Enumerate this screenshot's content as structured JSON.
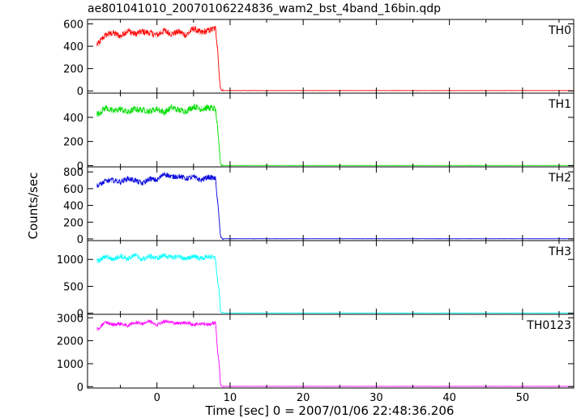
{
  "chart_data": {
    "type": "line",
    "title": "ae801041010_20070106224836_wam2_bst_4band_16bin.qdp",
    "xlabel": "Time [sec] 0 = 2007/01/06 22:48:36.206",
    "ylabel": "Counts/sec",
    "xlim": [
      -9.5,
      57
    ],
    "x_ticks": [
      0,
      10,
      20,
      30,
      40,
      50
    ],
    "grid": false,
    "drop_time": 8.6,
    "data_start": -8.2,
    "panels": [
      {
        "name": "TH0",
        "color": "#ff0000",
        "ylim": [
          -20,
          640
        ],
        "y_ticks": [
          0,
          200,
          400,
          600
        ],
        "level": 520,
        "noise": 55,
        "background": 3,
        "trace": [
          [
            -8,
            420
          ],
          [
            -7.5,
            470
          ],
          [
            -7,
            500
          ],
          [
            -6,
            520
          ],
          [
            -5,
            490
          ],
          [
            -4,
            540
          ],
          [
            -3,
            510
          ],
          [
            -2,
            530
          ],
          [
            -1,
            520
          ],
          [
            0,
            500
          ],
          [
            1,
            540
          ],
          [
            2,
            510
          ],
          [
            3,
            530
          ],
          [
            4,
            500
          ],
          [
            5,
            560
          ],
          [
            6,
            520
          ],
          [
            7,
            540
          ],
          [
            8,
            560
          ],
          [
            8.3,
            380
          ],
          [
            8.5,
            150
          ],
          [
            8.7,
            15
          ],
          [
            9,
            5
          ]
        ]
      },
      {
        "name": "TH1",
        "color": "#00dd00",
        "ylim": [
          -10,
          600
        ],
        "y_ticks": [
          0,
          200,
          400
        ],
        "level": 460,
        "noise": 50,
        "background": 2,
        "trace": [
          [
            -8,
            430
          ],
          [
            -7,
            480
          ],
          [
            -6,
            450
          ],
          [
            -5,
            470
          ],
          [
            -4,
            440
          ],
          [
            -3,
            470
          ],
          [
            -2,
            460
          ],
          [
            -1,
            450
          ],
          [
            0,
            470
          ],
          [
            1,
            440
          ],
          [
            2,
            480
          ],
          [
            3,
            460
          ],
          [
            4,
            450
          ],
          [
            5,
            490
          ],
          [
            6,
            470
          ],
          [
            7,
            480
          ],
          [
            8,
            470
          ],
          [
            8.3,
            300
          ],
          [
            8.5,
            160
          ],
          [
            8.7,
            10
          ],
          [
            9,
            3
          ]
        ]
      },
      {
        "name": "TH2",
        "color": "#0000dd",
        "ylim": [
          -20,
          860
        ],
        "y_ticks": [
          0,
          200,
          400,
          600,
          800
        ],
        "level": 710,
        "noise": 60,
        "background": 2,
        "trace": [
          [
            -8,
            640
          ],
          [
            -7,
            690
          ],
          [
            -6,
            700
          ],
          [
            -5,
            680
          ],
          [
            -4,
            720
          ],
          [
            -3,
            700
          ],
          [
            -2,
            660
          ],
          [
            -1,
            720
          ],
          [
            0,
            700
          ],
          [
            1,
            780
          ],
          [
            2,
            740
          ],
          [
            3,
            750
          ],
          [
            4,
            720
          ],
          [
            5,
            740
          ],
          [
            6,
            700
          ],
          [
            7,
            740
          ],
          [
            8,
            720
          ],
          [
            8.3,
            450
          ],
          [
            8.5,
            240
          ],
          [
            8.7,
            15
          ],
          [
            9,
            4
          ]
        ]
      },
      {
        "name": "TH3",
        "color": "#00ffff",
        "ylim": [
          -20,
          1350
        ],
        "y_ticks": [
          0,
          500,
          1000
        ],
        "level": 1040,
        "noise": 90,
        "background": 5,
        "trace": [
          [
            -8,
            970
          ],
          [
            -7,
            1060
          ],
          [
            -6,
            1000
          ],
          [
            -5,
            1070
          ],
          [
            -4,
            1010
          ],
          [
            -3,
            1080
          ],
          [
            -2,
            1000
          ],
          [
            -1,
            1060
          ],
          [
            0,
            1020
          ],
          [
            1,
            1080
          ],
          [
            2,
            1030
          ],
          [
            3,
            1060
          ],
          [
            4,
            1000
          ],
          [
            5,
            1070
          ],
          [
            6,
            1010
          ],
          [
            7,
            1060
          ],
          [
            8,
            1020
          ],
          [
            8.3,
            600
          ],
          [
            8.5,
            420
          ],
          [
            8.7,
            20
          ],
          [
            9,
            8
          ]
        ]
      },
      {
        "name": "TH0123",
        "color": "#ff00ff",
        "ylim": [
          -60,
          3150
        ],
        "y_ticks": [
          0,
          1000,
          2000,
          3000
        ],
        "level": 2750,
        "noise": 140,
        "background": 12,
        "trace": [
          [
            -8,
            2500
          ],
          [
            -7.5,
            2700
          ],
          [
            -7,
            2800
          ],
          [
            -6,
            2700
          ],
          [
            -5,
            2750
          ],
          [
            -4,
            2650
          ],
          [
            -3,
            2800
          ],
          [
            -2,
            2750
          ],
          [
            -1,
            2850
          ],
          [
            0,
            2700
          ],
          [
            1,
            2850
          ],
          [
            2,
            2800
          ],
          [
            3,
            2750
          ],
          [
            4,
            2800
          ],
          [
            5,
            2700
          ],
          [
            6,
            2750
          ],
          [
            7,
            2700
          ],
          [
            8,
            2800
          ],
          [
            8.3,
            1500
          ],
          [
            8.5,
            1050
          ],
          [
            8.7,
            40
          ],
          [
            9,
            15
          ]
        ]
      }
    ]
  }
}
